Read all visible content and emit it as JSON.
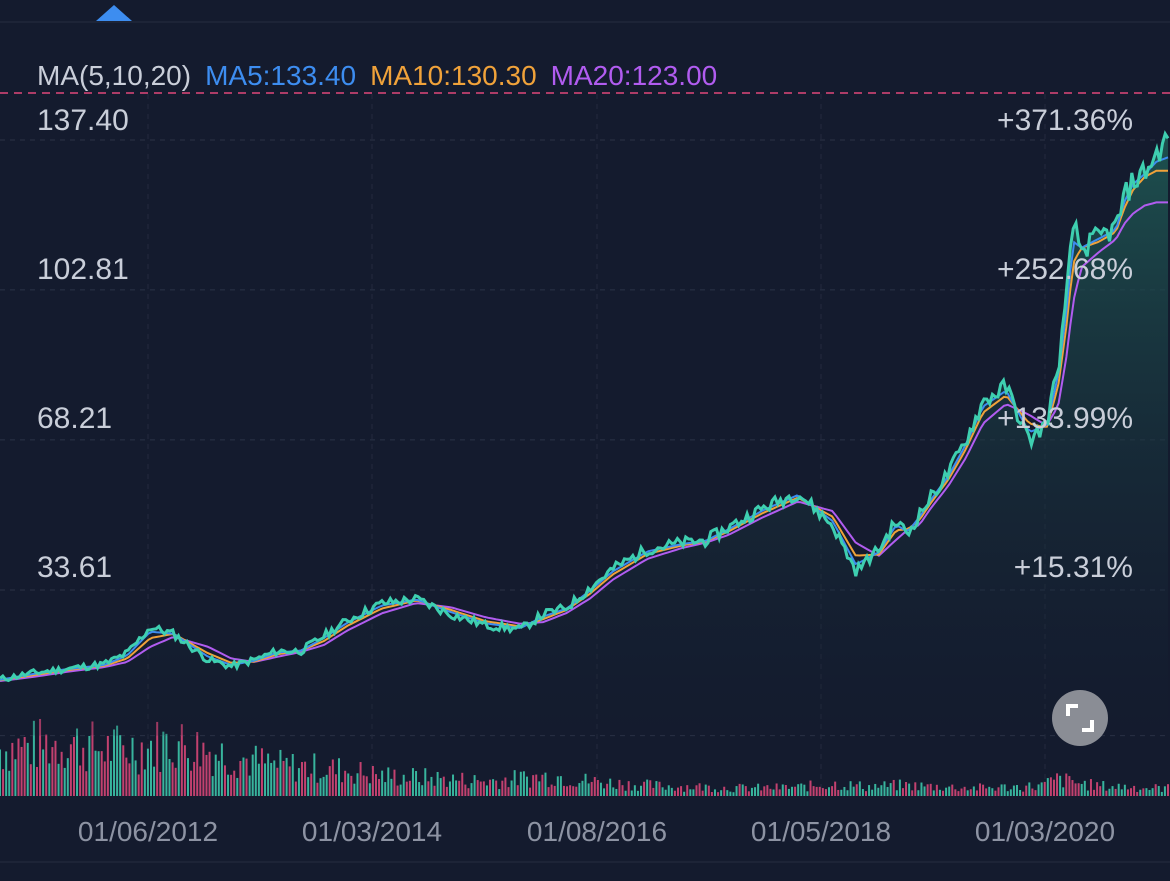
{
  "chart_data": {
    "type": "area",
    "indicator": {
      "title": "MA(5,10,20)",
      "ma5": "MA5:133.40",
      "ma10": "MA10:130.30",
      "ma20": "MA20:123.00"
    },
    "colors": {
      "background": "#141b2e",
      "price_line": "#3ecfb0",
      "area_top": "#1f5a55",
      "ma5": "#3d8df0",
      "ma10": "#f0a23a",
      "ma20": "#b15cf0",
      "volume_up": "#3ecfb0",
      "volume_down": "#e0487a",
      "marker": "#3d8df0",
      "reference_line": "#e0487a"
    },
    "y_tick_labels": [
      "137.40",
      "102.81",
      "68.21",
      "33.61"
    ],
    "y_ticks": [
      137.4,
      102.81,
      68.21,
      33.61
    ],
    "pct_labels": [
      "+371.36%",
      "+252.68%",
      "+133.99%",
      "+15.31%"
    ],
    "x_tick_labels": [
      "01/06/2012",
      "01/03/2014",
      "01/08/2016",
      "01/05/2018",
      "01/03/2020"
    ],
    "ylim": [
      -1,
      148
    ],
    "series": [
      {
        "name": "Price",
        "x": [
          2011.0,
          2011.3,
          2011.6,
          2011.9,
          2012.1,
          2012.3,
          2012.5,
          2012.8,
          2013.0,
          2013.2,
          2013.4,
          2013.6,
          2013.8,
          2014.0,
          2014.3,
          2014.6,
          2014.9,
          2015.2,
          2015.5,
          2015.7,
          2015.9,
          2016.1,
          2016.3,
          2016.6,
          2016.9,
          2017.1,
          2017.3,
          2017.6,
          2017.9,
          2018.2,
          2018.4,
          2018.6,
          2018.75,
          2018.85,
          2018.95,
          2019.05,
          2019.2,
          2019.35,
          2019.5,
          2019.7,
          2019.9,
          2020.05,
          2020.15,
          2020.22,
          2020.28,
          2020.35,
          2020.5,
          2020.65,
          2020.72,
          2020.8,
          2020.9,
          2021.0,
          2021.1
        ],
        "values": [
          13.0,
          14.5,
          15.5,
          16.5,
          19.0,
          25.0,
          23.5,
          17.5,
          16.0,
          17.5,
          19.5,
          19.5,
          23.0,
          26.5,
          30.5,
          31.5,
          28.0,
          25.5,
          24.5,
          28.0,
          29.5,
          34.0,
          38.5,
          43.0,
          44.5,
          45.0,
          48.0,
          52.5,
          56.0,
          48.5,
          38.0,
          43.0,
          49.5,
          46.5,
          51.0,
          55.0,
          60.5,
          68.0,
          77.0,
          80.5,
          68.0,
          72.0,
          85.0,
          100.0,
          118.0,
          112.0,
          115.0,
          117.0,
          124.0,
          128.0,
          130.0,
          134.0,
          138.0
        ]
      },
      {
        "name": "MA5",
        "x": [
          2011.0,
          2011.3,
          2011.6,
          2011.9,
          2012.1,
          2012.3,
          2012.5,
          2012.8,
          2013.0,
          2013.2,
          2013.4,
          2013.6,
          2013.8,
          2014.0,
          2014.3,
          2014.6,
          2014.9,
          2015.2,
          2015.5,
          2015.7,
          2015.9,
          2016.1,
          2016.3,
          2016.6,
          2016.9,
          2017.1,
          2017.3,
          2017.6,
          2017.9,
          2018.2,
          2018.4,
          2018.6,
          2018.75,
          2018.85,
          2018.95,
          2019.05,
          2019.2,
          2019.35,
          2019.5,
          2019.7,
          2019.9,
          2020.05,
          2020.15,
          2020.22,
          2020.28,
          2020.35,
          2020.5,
          2020.65,
          2020.72,
          2020.8,
          2020.9,
          2021.0,
          2021.1
        ],
        "values": [
          12.9,
          14.3,
          15.4,
          16.3,
          18.5,
          24.0,
          23.5,
          18.2,
          16.3,
          17.3,
          19.2,
          19.6,
          22.5,
          26.0,
          30.0,
          31.4,
          28.5,
          25.9,
          24.8,
          27.5,
          29.3,
          33.4,
          37.9,
          42.5,
          44.2,
          44.9,
          47.6,
          52.0,
          55.5,
          49.5,
          39.5,
          42.3,
          48.6,
          47.0,
          50.4,
          54.4,
          59.8,
          67.1,
          75.9,
          79.6,
          70.0,
          71.5,
          83.0,
          97.5,
          114.0,
          112.5,
          114.6,
          116.7,
          123.0,
          127.3,
          129.6,
          132.4,
          133.4
        ]
      },
      {
        "name": "MA10",
        "x": [
          2011.0,
          2011.3,
          2011.6,
          2011.9,
          2012.1,
          2012.3,
          2012.5,
          2012.8,
          2013.0,
          2013.2,
          2013.4,
          2013.6,
          2013.8,
          2014.0,
          2014.3,
          2014.6,
          2014.9,
          2015.2,
          2015.5,
          2015.7,
          2015.9,
          2016.1,
          2016.3,
          2016.6,
          2016.9,
          2017.1,
          2017.3,
          2017.6,
          2017.9,
          2018.2,
          2018.4,
          2018.6,
          2018.75,
          2018.85,
          2018.95,
          2019.05,
          2019.2,
          2019.35,
          2019.5,
          2019.7,
          2019.9,
          2020.05,
          2020.15,
          2020.22,
          2020.28,
          2020.35,
          2020.5,
          2020.65,
          2020.72,
          2020.8,
          2020.9,
          2021.0,
          2021.1
        ],
        "values": [
          12.8,
          14.0,
          15.2,
          16.1,
          17.8,
          22.5,
          23.5,
          19.0,
          16.8,
          17.1,
          18.8,
          19.6,
          21.8,
          25.3,
          29.3,
          31.2,
          29.0,
          26.4,
          25.2,
          26.9,
          29.0,
          32.7,
          37.2,
          41.9,
          43.9,
          44.8,
          47.1,
          51.4,
          54.9,
          50.5,
          41.5,
          41.8,
          47.4,
          47.6,
          49.7,
          53.7,
          59.0,
          66.0,
          74.5,
          78.5,
          72.0,
          71.0,
          80.5,
          94.0,
          109.0,
          112.5,
          113.9,
          116.2,
          121.5,
          126.0,
          128.9,
          130.3,
          130.3
        ]
      },
      {
        "name": "MA20",
        "x": [
          2011.0,
          2011.3,
          2011.6,
          2011.9,
          2012.1,
          2012.3,
          2012.5,
          2012.8,
          2013.0,
          2013.2,
          2013.4,
          2013.6,
          2013.8,
          2014.0,
          2014.3,
          2014.6,
          2014.9,
          2015.2,
          2015.5,
          2015.7,
          2015.9,
          2016.1,
          2016.3,
          2016.6,
          2016.9,
          2017.1,
          2017.3,
          2017.6,
          2017.9,
          2018.2,
          2018.4,
          2018.6,
          2018.75,
          2018.85,
          2018.95,
          2019.05,
          2019.2,
          2019.35,
          2019.5,
          2019.7,
          2019.9,
          2020.05,
          2020.15,
          2020.22,
          2020.28,
          2020.35,
          2020.5,
          2020.65,
          2020.72,
          2020.8,
          2020.9,
          2021.0,
          2021.1
        ],
        "values": [
          12.6,
          13.6,
          14.8,
          15.8,
          17.0,
          20.5,
          22.8,
          20.5,
          17.8,
          17.0,
          18.2,
          19.3,
          20.9,
          24.2,
          28.2,
          30.6,
          29.6,
          27.3,
          25.8,
          26.2,
          28.3,
          31.6,
          36.0,
          40.8,
          43.3,
          44.5,
          46.3,
          50.4,
          54.0,
          51.8,
          44.5,
          41.5,
          45.2,
          47.5,
          48.6,
          52.5,
          57.6,
          64.0,
          72.0,
          76.5,
          74.0,
          71.5,
          76.0,
          87.0,
          100.0,
          108.0,
          111.5,
          114.5,
          118.0,
          120.5,
          122.3,
          123.0,
          123.0
        ]
      }
    ],
    "volume": {
      "ylim": [
        0,
        100
      ],
      "x": [
        2011.0,
        2011.3,
        2011.6,
        2011.9,
        2012.2,
        2012.5,
        2012.8,
        2013.1,
        2013.4,
        2013.7,
        2014.0,
        2014.3,
        2014.6,
        2014.9,
        2015.2,
        2015.5,
        2015.8,
        2016.1,
        2016.4,
        2016.7,
        2017.0,
        2017.3,
        2017.6,
        2017.9,
        2018.2,
        2018.5,
        2018.8,
        2019.1,
        2019.4,
        2019.7,
        2020.0,
        2020.15,
        2020.3,
        2020.45,
        2020.6,
        2020.75,
        2020.9,
        2021.05
      ],
      "values": [
        70,
        75,
        80,
        70,
        72,
        80,
        68,
        55,
        45,
        42,
        38,
        30,
        28,
        25,
        22,
        26,
        30,
        22,
        18,
        15,
        14,
        12,
        12,
        13,
        18,
        14,
        16,
        14,
        12,
        13,
        15,
        25,
        20,
        16,
        14,
        14,
        12,
        12
      ],
      "up": [
        true,
        false,
        true,
        true,
        false,
        true,
        false,
        true,
        false,
        true,
        true,
        false,
        true,
        false,
        false,
        true,
        false,
        true,
        true,
        false,
        true,
        true,
        false,
        true,
        false,
        true,
        false,
        true,
        true,
        false,
        true,
        false,
        true,
        true,
        false,
        true,
        false,
        true
      ]
    },
    "x_range": [
      2011.0,
      2021.1
    ]
  },
  "expand_icon": "expand-icon",
  "marker_icon": "triangle-up-icon"
}
